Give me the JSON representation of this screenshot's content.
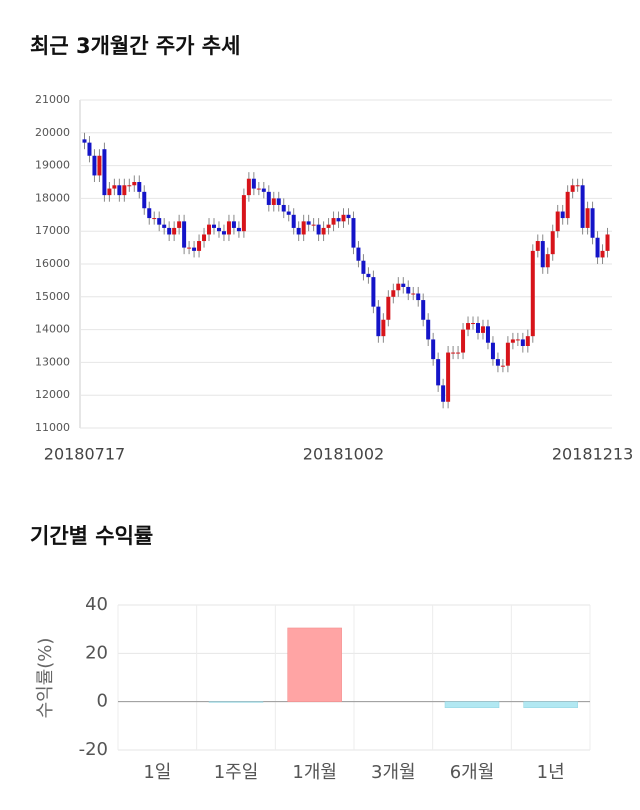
{
  "charts": [
    {
      "type": "candlestick",
      "title": "최근 3개월간 주가 추세",
      "categories": [
        "20180717",
        null,
        null,
        null,
        null,
        null,
        null,
        null,
        null,
        null,
        null,
        null,
        null,
        null,
        null,
        null,
        null,
        null,
        null,
        null,
        null,
        null,
        null,
        null,
        null,
        null,
        null,
        null,
        null,
        null,
        null,
        null,
        null,
        null,
        null,
        null,
        null,
        null,
        null,
        null,
        null,
        null,
        null,
        null,
        null,
        null,
        null,
        null,
        null,
        null,
        null,
        null,
        "20181002",
        null,
        null,
        null,
        null,
        null,
        null,
        null,
        null,
        null,
        null,
        null,
        null,
        null,
        null,
        null,
        null,
        null,
        null,
        null,
        null,
        null,
        null,
        null,
        null,
        null,
        null,
        null,
        null,
        null,
        null,
        null,
        null,
        null,
        null,
        null,
        null,
        null,
        null,
        null,
        null,
        null,
        null,
        null,
        null,
        null,
        null,
        null,
        null,
        null,
        "20181213",
        null,
        null,
        null
      ],
      "open": [
        19800,
        19700,
        19300,
        18700,
        19500,
        18100,
        18300,
        18400,
        18100,
        18400,
        18400,
        18500,
        18200,
        17700,
        17400,
        17400,
        17200,
        17100,
        16900,
        17100,
        17300,
        16500,
        16500,
        16400,
        16700,
        16900,
        17200,
        17100,
        17000,
        16900,
        17300,
        17100,
        17000,
        18100,
        18600,
        18300,
        18300,
        18200,
        17800,
        18000,
        17800,
        17600,
        17500,
        17100,
        16900,
        17300,
        17200,
        17200,
        16900,
        17100,
        17200,
        17400,
        17300,
        17500,
        17400,
        16500,
        16100,
        15700,
        15600,
        14700,
        13800,
        14300,
        15000,
        15200,
        15400,
        15300,
        15100,
        15100,
        14900,
        14300,
        13700,
        13100,
        12300,
        11800,
        13300,
        13300,
        13300,
        14000,
        14200,
        14200,
        13900,
        14100,
        13600,
        13100,
        12900,
        12900,
        13600,
        13700,
        13700,
        13500,
        13800,
        16400,
        16700,
        15900,
        16300,
        17000,
        17600,
        17400,
        18200,
        18400,
        18400,
        17100,
        17700,
        16800,
        16200,
        16400
      ],
      "high": [
        20000,
        19900,
        19500,
        19500,
        19700,
        18500,
        18600,
        18600,
        18600,
        18600,
        18700,
        18700,
        18400,
        17900,
        17600,
        17600,
        17400,
        17300,
        17300,
        17500,
        17500,
        16700,
        16700,
        16900,
        17100,
        17400,
        17400,
        17300,
        17200,
        17500,
        17500,
        17300,
        18300,
        18800,
        18800,
        18500,
        18500,
        18400,
        18200,
        18200,
        18000,
        17800,
        17700,
        17300,
        17500,
        17500,
        17400,
        17400,
        17300,
        17400,
        17600,
        17600,
        17700,
        17700,
        17600,
        16700,
        16300,
        15900,
        15800,
        14900,
        14500,
        15200,
        15400,
        15600,
        15600,
        15500,
        15300,
        15300,
        15100,
        14500,
        13900,
        13300,
        12500,
        13500,
        13500,
        13500,
        14200,
        14400,
        14400,
        14400,
        14300,
        14300,
        13800,
        13300,
        13100,
        13800,
        13900,
        13900,
        13900,
        14000,
        16600,
        16900,
        16900,
        16500,
        17200,
        17800,
        17800,
        18400,
        18600,
        18600,
        18600,
        17900,
        17900,
        17000,
        16600,
        17100
      ],
      "low": [
        19500,
        19100,
        18500,
        18500,
        17900,
        17900,
        18100,
        17900,
        17900,
        18200,
        18200,
        18000,
        17500,
        17200,
        17200,
        17000,
        16900,
        16700,
        16700,
        16900,
        16300,
        16300,
        16200,
        16200,
        16500,
        16700,
        16900,
        16800,
        16700,
        16700,
        16900,
        16800,
        16800,
        17900,
        18100,
        18100,
        18000,
        17600,
        17600,
        17600,
        17400,
        17300,
        16900,
        16700,
        16700,
        17000,
        17000,
        16700,
        16700,
        16900,
        17000,
        17100,
        17100,
        17200,
        16300,
        15900,
        15500,
        15400,
        14500,
        13600,
        13600,
        14100,
        14800,
        15000,
        15100,
        14900,
        14900,
        14700,
        14100,
        13500,
        12900,
        12100,
        11600,
        11600,
        13100,
        13100,
        13100,
        13800,
        14000,
        13700,
        13700,
        13400,
        12900,
        12700,
        12700,
        12700,
        13400,
        13500,
        13300,
        13300,
        13600,
        16200,
        15700,
        15700,
        16100,
        16800,
        17200,
        17200,
        18000,
        18200,
        16900,
        16900,
        16600,
        16000,
        16000,
        16200
      ],
      "close": [
        19700,
        19300,
        18700,
        19300,
        18100,
        18300,
        18400,
        18100,
        18400,
        18400,
        18500,
        18200,
        17700,
        17400,
        17400,
        17200,
        17100,
        16900,
        17100,
        17300,
        16500,
        16500,
        16400,
        16700,
        16900,
        17200,
        17100,
        17000,
        16900,
        17300,
        17100,
        17000,
        18100,
        18600,
        18300,
        18300,
        18200,
        17800,
        18000,
        17800,
        17600,
        17500,
        17100,
        16900,
        17300,
        17200,
        17200,
        16900,
        17100,
        17200,
        17400,
        17300,
        17500,
        17400,
        16500,
        16100,
        15700,
        15600,
        14700,
        13800,
        14300,
        15000,
        15200,
        15400,
        15300,
        15100,
        15100,
        14900,
        14300,
        13700,
        13100,
        12300,
        11800,
        13300,
        13300,
        13300,
        14000,
        14200,
        14200,
        13900,
        14100,
        13600,
        13100,
        12900,
        12900,
        13600,
        13700,
        13700,
        13500,
        13800,
        16400,
        16700,
        15900,
        16300,
        17000,
        17600,
        17400,
        18200,
        18400,
        18400,
        17100,
        17700,
        16800,
        16200,
        16400,
        16900
      ],
      "up_color": "#d7141a",
      "down_color": "#1414c8",
      "ylim": [
        11000,
        21000
      ],
      "yticks": [
        11000,
        12000,
        13000,
        14000,
        15000,
        16000,
        17000,
        18000,
        19000,
        20000,
        21000
      ],
      "grid": true
    },
    {
      "type": "bar",
      "title": "기간별 수익률",
      "y_label": "수익률(%)",
      "categories": [
        "1일",
        "1주일",
        "1개월",
        "3개월",
        "6개월",
        "1년"
      ],
      "values": [
        0,
        -0.3,
        30.5,
        0,
        -2.5,
        -2.5
      ],
      "positive_color": "#ffa4a4",
      "negative_color": "#b2e8f2",
      "ylim": [
        -20,
        40
      ],
      "yticks": [
        -20,
        0,
        20,
        40
      ],
      "grid": true
    }
  ]
}
